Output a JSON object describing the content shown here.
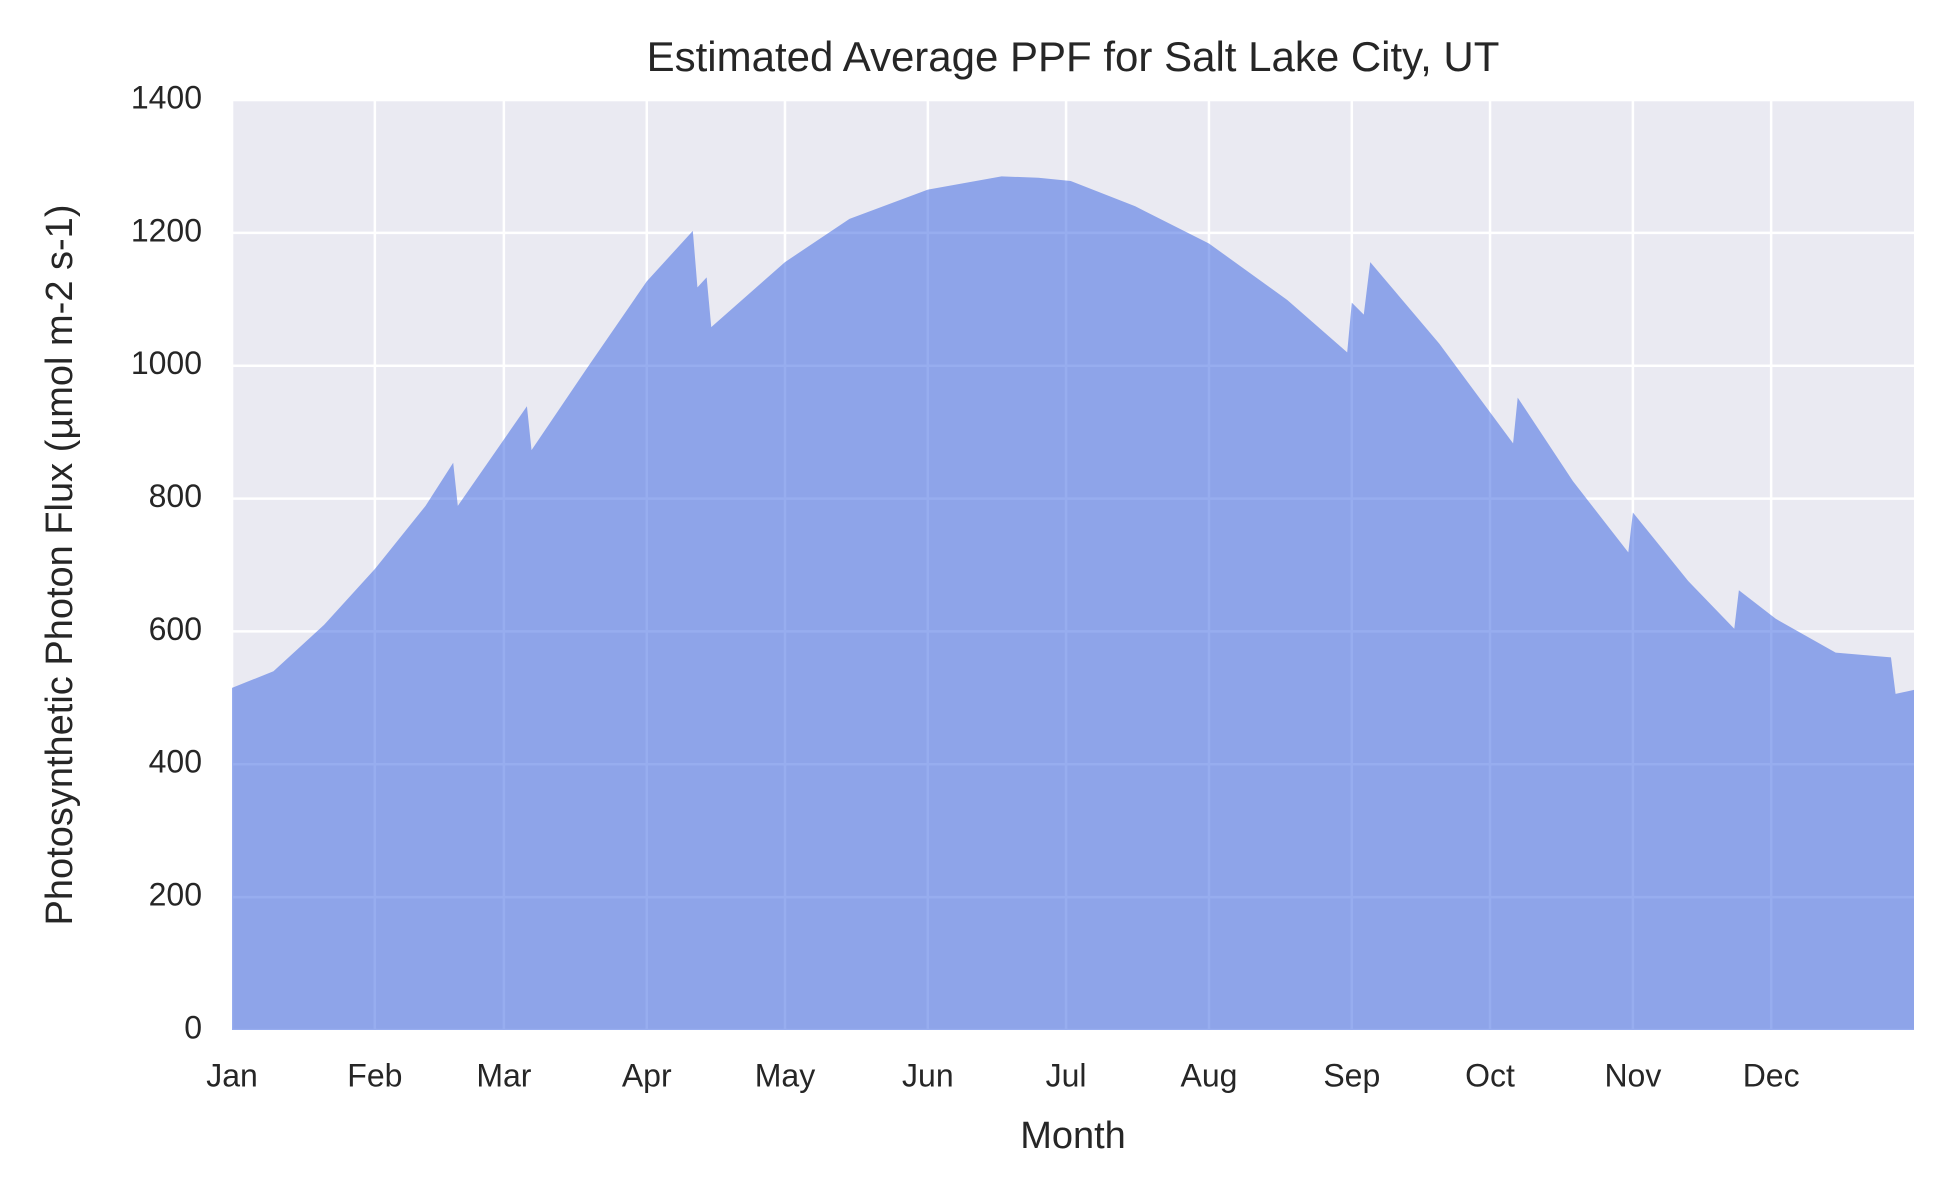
{
  "chart_data": {
    "type": "area",
    "title": "Estimated Average PPF for Salt Lake City, UT",
    "xlabel": "Month",
    "ylabel": "Photosynthetic Photon Flux (µmol m-2 s-1)",
    "color": "#4169e1",
    "grid": true,
    "x": [
      0,
      9,
      20,
      31,
      42,
      48,
      49,
      64,
      65,
      77,
      90,
      100,
      101,
      103,
      104,
      120,
      134,
      151,
      167,
      175,
      182,
      196,
      212,
      229,
      242,
      243,
      245.6,
      247,
      262,
      278,
      279,
      291,
      303,
      304,
      316,
      326,
      327,
      335,
      348,
      360,
      361,
      365
    ],
    "values": [
      515,
      540,
      610,
      694,
      789,
      854,
      789,
      939,
      873,
      996,
      1127,
      1203,
      1118,
      1133,
      1058,
      1156,
      1221,
      1265,
      1285,
      1283,
      1278,
      1240,
      1184,
      1099,
      1020,
      1095,
      1077,
      1156,
      1033,
      883,
      952,
      826,
      719,
      779,
      676,
      604,
      662,
      619,
      568,
      561,
      506,
      512
    ],
    "xlim": [
      0,
      365
    ],
    "xticks": [
      {
        "value": 0,
        "label": "Jan"
      },
      {
        "value": 31,
        "label": "Feb"
      },
      {
        "value": 59,
        "label": "Mar"
      },
      {
        "value": 90,
        "label": "Apr"
      },
      {
        "value": 120,
        "label": "May"
      },
      {
        "value": 151,
        "label": "Jun"
      },
      {
        "value": 181,
        "label": "Jul"
      },
      {
        "value": 212,
        "label": "Aug"
      },
      {
        "value": 243,
        "label": "Sep"
      },
      {
        "value": 273,
        "label": "Oct"
      },
      {
        "value": 304,
        "label": "Nov"
      },
      {
        "value": 334,
        "label": "Dec"
      }
    ],
    "ylim": [
      0,
      1400
    ],
    "yticks": [
      0,
      200,
      400,
      600,
      800,
      1000,
      1200,
      1400
    ]
  }
}
